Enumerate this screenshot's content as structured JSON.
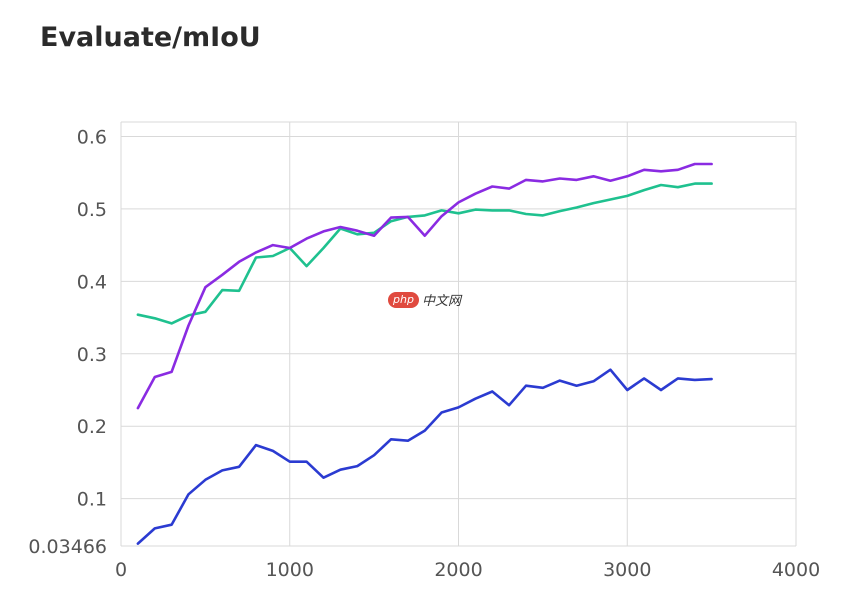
{
  "title": "Evaluate/mIoU",
  "watermark": {
    "badge": "php",
    "text": "中文网"
  },
  "chart_data": {
    "type": "line",
    "title": "Evaluate/mIoU",
    "xlabel": "",
    "ylabel": "",
    "xlim": [
      0,
      4000
    ],
    "ylim": [
      0.03466,
      0.62
    ],
    "xticks": [
      0,
      1000,
      2000,
      3000,
      4000
    ],
    "xtick_labels": [
      "0",
      "1000",
      "2000",
      "3000",
      "4000"
    ],
    "yticks": [
      0.03466,
      0.1,
      0.2,
      0.3,
      0.4,
      0.5,
      0.6
    ],
    "ytick_labels": [
      "0.03466",
      "0.1",
      "0.2",
      "0.3",
      "0.4",
      "0.5",
      "0.6"
    ],
    "grid": true,
    "series": [
      {
        "color": "#1fc18f",
        "x": [
          100,
          200,
          300,
          400,
          500,
          600,
          700,
          800,
          900,
          1000,
          1100,
          1200,
          1300,
          1400,
          1500,
          1600,
          1700,
          1800,
          1900,
          2000,
          2100,
          2200,
          2300,
          2400,
          2500,
          2600,
          2700,
          2800,
          2900,
          3000,
          3100,
          3200,
          3300,
          3400,
          3500
        ],
        "y": [
          0.354,
          0.349,
          0.342,
          0.353,
          0.358,
          0.388,
          0.387,
          0.433,
          0.435,
          0.446,
          0.421,
          0.446,
          0.473,
          0.465,
          0.467,
          0.483,
          0.489,
          0.491,
          0.498,
          0.494,
          0.499,
          0.498,
          0.498,
          0.493,
          0.491,
          0.497,
          0.502,
          0.508,
          0.513,
          0.518,
          0.526,
          0.533,
          0.53,
          0.535,
          0.535
        ]
      },
      {
        "color": "#8a2be2",
        "x": [
          100,
          200,
          300,
          400,
          500,
          600,
          700,
          800,
          900,
          1000,
          1100,
          1200,
          1300,
          1400,
          1500,
          1600,
          1700,
          1800,
          1900,
          2000,
          2100,
          2200,
          2300,
          2400,
          2500,
          2600,
          2700,
          2800,
          2900,
          3000,
          3100,
          3200,
          3300,
          3400,
          3500
        ],
        "y": [
          0.225,
          0.268,
          0.275,
          0.339,
          0.392,
          0.409,
          0.427,
          0.44,
          0.45,
          0.446,
          0.459,
          0.469,
          0.475,
          0.47,
          0.463,
          0.488,
          0.489,
          0.463,
          0.49,
          0.509,
          0.521,
          0.531,
          0.528,
          0.54,
          0.538,
          0.542,
          0.54,
          0.545,
          0.539,
          0.545,
          0.554,
          0.552,
          0.554,
          0.562,
          0.562
        ]
      },
      {
        "color": "#2b3bd1",
        "x": [
          100,
          200,
          300,
          400,
          500,
          600,
          700,
          800,
          900,
          1000,
          1100,
          1200,
          1300,
          1400,
          1500,
          1600,
          1700,
          1800,
          1900,
          2000,
          2100,
          2200,
          2300,
          2400,
          2500,
          2600,
          2700,
          2800,
          2900,
          3000,
          3100,
          3200,
          3300,
          3400,
          3500
        ],
        "y": [
          0.038,
          0.059,
          0.064,
          0.106,
          0.126,
          0.139,
          0.144,
          0.174,
          0.166,
          0.151,
          0.151,
          0.129,
          0.14,
          0.145,
          0.16,
          0.182,
          0.18,
          0.194,
          0.219,
          0.226,
          0.238,
          0.248,
          0.229,
          0.256,
          0.253,
          0.263,
          0.256,
          0.262,
          0.278,
          0.25,
          0.266,
          0.25,
          0.266,
          0.264,
          0.265
        ]
      }
    ]
  }
}
